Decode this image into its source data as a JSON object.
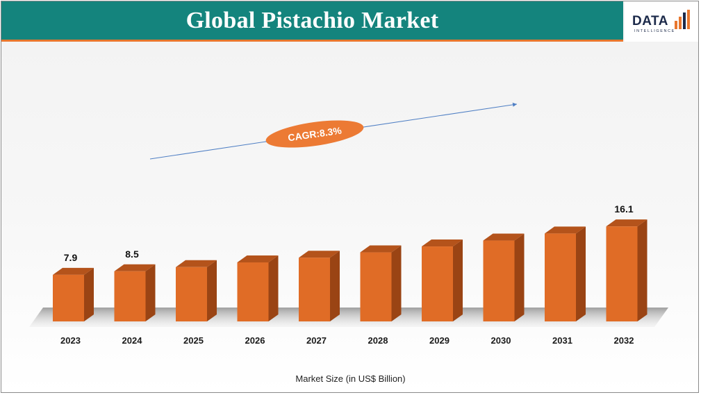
{
  "header": {
    "title": "Global Pistachio Market",
    "logo_text": "DATA",
    "logo_subtext": "INTELLIGENCE"
  },
  "colors": {
    "header_bg": "#14847d",
    "header_accent": "#e8772e",
    "bar_front": "#e06c26",
    "bar_side": "#9a4414",
    "bar_top": "#b4531b",
    "cagr_fill": "#ec7a34",
    "arrow": "#4f7fc4"
  },
  "chart_data": {
    "type": "bar",
    "categories": [
      "2023",
      "2024",
      "2025",
      "2026",
      "2027",
      "2028",
      "2029",
      "2030",
      "2031",
      "2032"
    ],
    "values": [
      7.9,
      8.5,
      9.2,
      10.0,
      10.8,
      11.7,
      12.7,
      13.7,
      14.9,
      16.1
    ],
    "data_labels": [
      "7.9",
      "8.5",
      "",
      "",
      "",
      "",
      "",
      "",
      "",
      "16.1"
    ],
    "xlabel": "Market Size (in US$ Billion)",
    "ylabel": "",
    "ylim": [
      0,
      16.1
    ],
    "grid": false,
    "annotation": "CAGR:8.3%"
  }
}
